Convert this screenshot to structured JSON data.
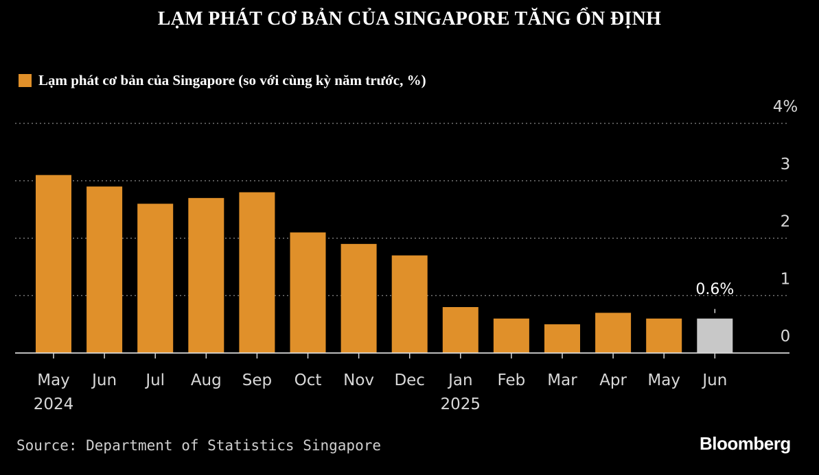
{
  "header": {
    "title": "LẠM PHÁT CƠ BẢN CỦA SINGAPORE TĂNG ỔN ĐỊNH"
  },
  "footer": {
    "source": "Source: Department of Statistics Singapore",
    "brand": "Bloomberg"
  },
  "colors": {
    "background": "#000000",
    "bar": "#E0902A",
    "highlight_bar": "#C8C8C8",
    "grid": "#8a8a8a",
    "axis_text": "#d8d8d8"
  },
  "chart_data": {
    "type": "bar",
    "title": "LẠM PHÁT CƠ BẢN CỦA SINGAPORE TĂNG ỔN ĐỊNH",
    "legend": "Lạm phát cơ bản của Singapore (so với cùng kỳ năm trước, %)",
    "categories": [
      "May",
      "Jun",
      "Jul",
      "Aug",
      "Sep",
      "Oct",
      "Nov",
      "Dec",
      "Jan",
      "Feb",
      "Mar",
      "Apr",
      "May",
      "Jun"
    ],
    "year_labels": [
      {
        "category_index": 0,
        "label": "2024"
      },
      {
        "category_index": 8,
        "label": "2025"
      }
    ],
    "values": [
      3.1,
      2.9,
      2.6,
      2.7,
      2.8,
      2.1,
      1.9,
      1.7,
      0.8,
      0.6,
      0.5,
      0.7,
      0.6,
      0.6
    ],
    "highlight_index": 13,
    "annotation": {
      "category_index": 13,
      "label": "0.6%"
    },
    "ylim": [
      0,
      4
    ],
    "yticks": [
      {
        "value": 0,
        "label": "0"
      },
      {
        "value": 1,
        "label": "1"
      },
      {
        "value": 2,
        "label": "2"
      },
      {
        "value": 3,
        "label": "3"
      },
      {
        "value": 4,
        "label": "4%"
      }
    ],
    "grid": true,
    "axis_side": "right",
    "xlabel": "",
    "ylabel": ""
  }
}
